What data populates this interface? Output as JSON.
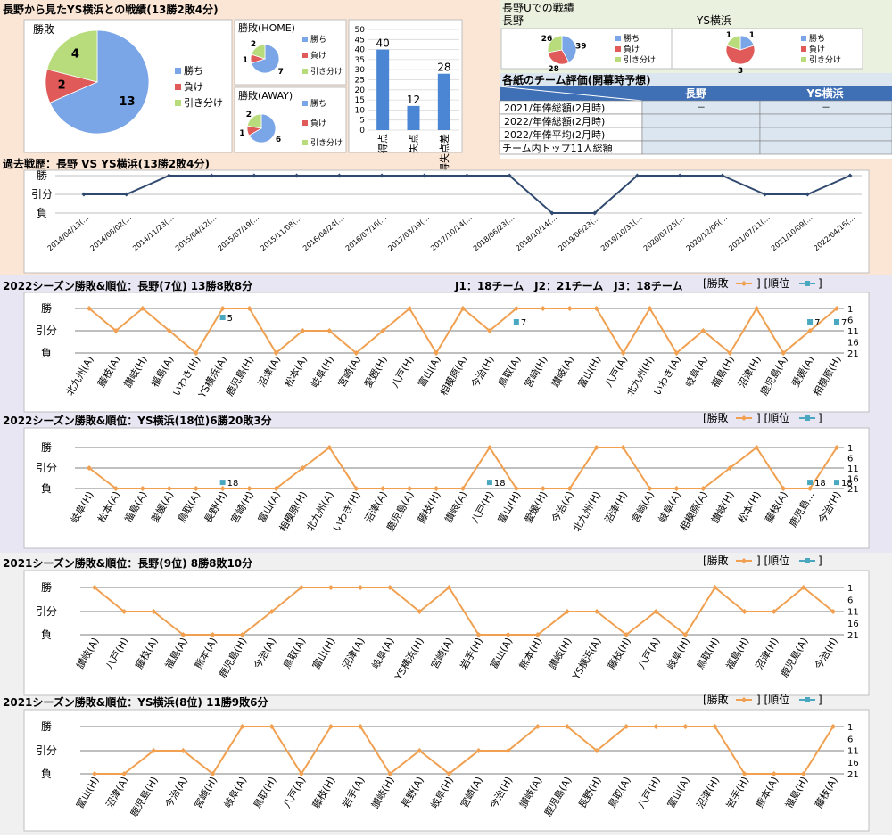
{
  "panels": {
    "top_left_title": "長野から見たYS横浜との戦績(13勝2敗4分)",
    "top_right_title": "長野Uでの戦績",
    "top_right_left_label": "長野",
    "top_right_right_label": "YS横浜"
  },
  "legend_labels": {
    "win": "勝ち",
    "loss": "負け",
    "draw": "引き分け"
  },
  "colors": {
    "win": "#7aa5e6",
    "loss": "#e05a5a",
    "draw": "#b8dc7c",
    "orange": "#f0a050",
    "teal": "#4aa7c0",
    "navy": "#30496f",
    "peach_bg": "#fbe6d6",
    "green_bg": "#eaf1df",
    "lavender_bg": "#e7e6f2",
    "gray_bg": "#f0f0f0"
  },
  "evaluation": {
    "title": "各紙のチーム評価(開幕時予想)",
    "columns": [
      "長野",
      "YS横浜"
    ],
    "rows": [
      {
        "label": "2021/年俸総額(2月時)",
        "a": "－",
        "b": "－"
      },
      {
        "label": "2022/年俸総額(2月時)",
        "a": "",
        "b": ""
      },
      {
        "label": "2022/年俸平均(2月時)",
        "a": "",
        "b": ""
      },
      {
        "label": "チーム内トップ11人総額",
        "a": "",
        "b": ""
      }
    ]
  },
  "chart_data": [
    {
      "type": "pie",
      "title": "勝敗",
      "categories": [
        "勝ち",
        "負け",
        "引き分け"
      ],
      "values": [
        13,
        2,
        4
      ]
    },
    {
      "type": "pie",
      "title": "勝敗(HOME)",
      "categories": [
        "勝ち",
        "負け",
        "引き分け"
      ],
      "values": [
        7,
        1,
        2
      ]
    },
    {
      "type": "pie",
      "title": "勝敗(AWAY)",
      "categories": [
        "勝ち",
        "負け",
        "引き分け"
      ],
      "values": [
        6,
        1,
        2
      ]
    },
    {
      "type": "bar",
      "title": "",
      "categories": [
        "得点",
        "失点",
        "得失点差"
      ],
      "values": [
        40,
        12,
        28
      ],
      "ylim": [
        0,
        50
      ],
      "yticks": [
        0,
        5,
        10,
        15,
        20,
        25,
        30,
        35,
        40,
        45,
        50
      ]
    },
    {
      "type": "pie",
      "title": "長野",
      "categories": [
        "勝ち",
        "負け",
        "引き分け"
      ],
      "values": [
        39,
        28,
        26
      ]
    },
    {
      "type": "pie",
      "title": "YS横浜",
      "categories": [
        "勝ち",
        "負け",
        "引き分け"
      ],
      "values": [
        1,
        3,
        1
      ]
    },
    {
      "type": "line",
      "title": "過去戦歴：長野 VS YS横浜(13勝2敗4分)",
      "y_categories": [
        "勝",
        "引分",
        "負"
      ],
      "x": [
        "2014/04/13(…",
        "2014/08/02(…",
        "2014/11/23(…",
        "2015/04/12(…",
        "2015/07/19(…",
        "2015/11/08(…",
        "2016/04/24(…",
        "2016/07/16(…",
        "2017/03/19(…",
        "2017/10/14(…",
        "2018/06/23(…",
        "2018/10/14(…",
        "2019/06/23(…",
        "2019/10/31(…",
        "2020/07/25(…",
        "2020/12/06(…",
        "2021/07/11(…",
        "2021/10/09(…",
        "2022/04/16(…"
      ],
      "values": [
        0,
        0,
        1,
        1,
        1,
        1,
        1,
        1,
        1,
        1,
        1,
        -1,
        -1,
        1,
        1,
        1,
        0,
        0,
        1
      ]
    },
    {
      "type": "line",
      "title": "2022シーズン勝敗&順位：長野(7位) 13勝8敗8分",
      "note": "J1：18チーム　J2：21チーム　J3：18チーム",
      "legend": "[勝敗 ]  [順位 ]",
      "y_categories": [
        "勝",
        "引分",
        "負"
      ],
      "y2_ticks": [
        1,
        6,
        11,
        16,
        21
      ],
      "x": [
        "北九州(A)",
        "藤枝(A)",
        "讃岐(H)",
        "福島(A)",
        "いわき(H)",
        "YS横浜(A)",
        "鹿児島(H)",
        "沼津(A)",
        "松本(A)",
        "岐阜(H)",
        "宮崎(A)",
        "愛媛(H)",
        "八戸(H)",
        "富山(A)",
        "相模原(A)",
        "今治(H)",
        "鳥取(A)",
        "宮崎(H)",
        "讃岐(A)",
        "富山(H)",
        "八戸(A)",
        "北九州(H)",
        "いわき(A)",
        "岐阜(A)",
        "福島(H)",
        "沼津(H)",
        "鹿児島(A)",
        "愛媛(A)",
        "相模原(H)"
      ],
      "series": [
        {
          "name": "勝敗",
          "values": [
            1,
            0,
            1,
            0,
            -1,
            1,
            1,
            -1,
            0,
            0,
            -1,
            0,
            1,
            -1,
            1,
            0,
            1,
            1,
            1,
            1,
            -1,
            1,
            -1,
            0,
            -1,
            1,
            -1,
            0,
            1
          ]
        },
        {
          "name": "順位",
          "rank_points": [
            [
              5,
              5
            ],
            [
              16,
              7
            ],
            [
              27,
              7
            ],
            [
              28,
              7
            ]
          ]
        }
      ]
    },
    {
      "type": "line",
      "title": "2022シーズン勝敗&順位：YS横浜(18位)6勝20敗3分",
      "legend": "[勝敗 ]  [順位 ]",
      "y_categories": [
        "勝",
        "引分",
        "負"
      ],
      "y2_ticks": [
        1,
        6,
        11,
        16,
        21
      ],
      "x": [
        "岐阜(H)",
        "松本(A)",
        "福島(A)",
        "愛媛(A)",
        "鳥取(A)",
        "長野(H)",
        "宮崎(H)",
        "富山(A)",
        "相模原(H)",
        "北九州(A)",
        "いわき(H)",
        "沼津(A)",
        "鹿児島(A)",
        "藤枝(H)",
        "讃岐(A)",
        "八戸(H)",
        "富山(H)",
        "愛媛(H)",
        "今治(A)",
        "北九州(H)",
        "沼津(H)",
        "宮崎(A)",
        "岐阜(A)",
        "相模原(A)",
        "讃岐(H)",
        "松本(H)",
        "藤枝(A)",
        "鹿児島…",
        "今治(H)"
      ],
      "series": [
        {
          "name": "勝敗",
          "values": [
            0,
            -1,
            -1,
            -1,
            -1,
            -1,
            -1,
            -1,
            0,
            1,
            -1,
            -1,
            -1,
            -1,
            -1,
            1,
            -1,
            -1,
            -1,
            1,
            1,
            -1,
            -1,
            -1,
            0,
            1,
            -1,
            -1,
            1
          ]
        },
        {
          "name": "順位",
          "rank_points": [
            [
              5,
              18
            ],
            [
              15,
              18
            ],
            [
              27,
              18
            ],
            [
              28,
              18
            ]
          ]
        }
      ]
    },
    {
      "type": "line",
      "title": "2021シーズン勝敗&順位：長野(9位) 8勝8敗10分",
      "legend": "[勝敗 ]  [順位 ]",
      "y_categories": [
        "勝",
        "引分",
        "負"
      ],
      "y2_ticks": [
        1,
        6,
        11,
        16,
        21
      ],
      "x": [
        "讃岐(A)",
        "八戸(H)",
        "藤枝(A)",
        "福島(A)",
        "熊本(A)",
        "鹿児島(H)",
        "今治(A)",
        "鳥取(A)",
        "富山(H)",
        "沼津(A)",
        "岐阜(A)",
        "YS横浜(H)",
        "宮崎(A)",
        "岩手(H)",
        "富山(A)",
        "熊本(H)",
        "讃岐(H)",
        "YS横浜(A)",
        "藤枝(H)",
        "八戸(A)",
        "岐阜(H)",
        "鳥取(H)",
        "福島(H)",
        "沼津(H)",
        "鹿児島(A)",
        "今治(H)"
      ],
      "series": [
        {
          "name": "勝敗",
          "values": [
            1,
            0,
            0,
            -1,
            -1,
            -1,
            0,
            1,
            1,
            1,
            1,
            0,
            1,
            -1,
            -1,
            -1,
            0,
            0,
            -1,
            0,
            -1,
            1,
            0,
            0,
            1,
            0
          ]
        }
      ]
    },
    {
      "type": "line",
      "title": "2021シーズン勝敗&順位：YS横浜(8位) 11勝9敗6分",
      "legend": "[勝敗 ]  [順位 ]",
      "y_categories": [
        "勝",
        "引分",
        "負"
      ],
      "y2_ticks": [
        1,
        6,
        11,
        16,
        21
      ],
      "x": [
        "富山(H)",
        "沼津(A)",
        "鹿児島(H)",
        "今治(A)",
        "宮崎(H)",
        "岐阜(A)",
        "鳥取(H)",
        "八戸(A)",
        "藤枝(H)",
        "岩手(A)",
        "讃岐(H)",
        "長野(A)",
        "岐阜(H)",
        "宮崎(A)",
        "今治(H)",
        "讃岐(A)",
        "鹿児島(A)",
        "長野(H)",
        "鳥取(A)",
        "八戸(H)",
        "富山(A)",
        "沼津(H)",
        "岩手(H)",
        "熊本(A)",
        "福島(H)",
        "藤枝(A)"
      ],
      "series": [
        {
          "name": "勝敗",
          "values": [
            -1,
            -1,
            0,
            0,
            -1,
            1,
            1,
            -1,
            1,
            1,
            -1,
            0,
            -1,
            0,
            0,
            1,
            1,
            0,
            1,
            1,
            1,
            1,
            -1,
            -1,
            -1,
            1
          ]
        }
      ]
    }
  ]
}
